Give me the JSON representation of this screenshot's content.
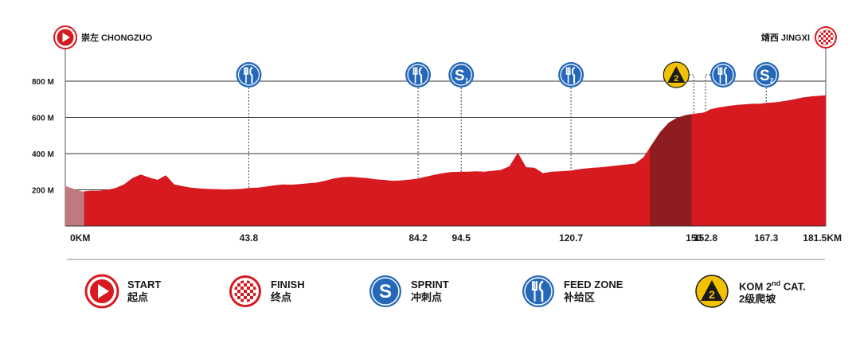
{
  "start": {
    "name": "崇左 CHONGZUO"
  },
  "finish": {
    "name": "靖西 JINGXI"
  },
  "chart_data": {
    "type": "area",
    "ylim": [
      0,
      900
    ],
    "xlim": [
      0,
      181.5
    ],
    "y_ticks": [
      {
        "value": 200,
        "label": "200 M"
      },
      {
        "value": 400,
        "label": "400 M"
      },
      {
        "value": 600,
        "label": "600 M"
      },
      {
        "value": 800,
        "label": "800 M"
      }
    ],
    "x_ticks": [
      {
        "value": 0,
        "label": "0KM"
      },
      {
        "value": 43.8,
        "label": "43.8"
      },
      {
        "value": 84.2,
        "label": "84.2"
      },
      {
        "value": 94.5,
        "label": "94.5"
      },
      {
        "value": 120.7,
        "label": "120.7"
      },
      {
        "value": 150,
        "label": "150"
      },
      {
        "value": 152.8,
        "label": "152.8"
      },
      {
        "value": 167.3,
        "label": "167.3"
      },
      {
        "value": 181.5,
        "label": "181.5KM"
      }
    ],
    "profile": {
      "x": [
        0,
        2,
        4,
        6,
        8,
        10,
        12,
        14,
        16,
        18,
        20,
        22,
        24,
        26,
        28,
        30,
        32,
        34,
        36,
        38,
        40,
        42,
        43.8,
        46,
        48,
        50,
        52,
        54,
        56,
        58,
        60,
        62,
        64,
        66,
        68,
        70,
        72,
        74,
        76,
        78,
        80,
        82,
        84.2,
        86,
        88,
        90,
        92,
        94.5,
        96,
        98,
        100,
        102,
        104,
        106,
        108,
        110,
        112,
        114,
        116,
        118,
        120.7,
        122,
        124,
        126,
        128,
        130,
        132,
        134,
        136,
        138,
        140,
        142,
        144,
        146,
        148,
        150,
        152,
        152.8,
        154,
        156,
        158,
        160,
        162,
        164,
        166,
        167.3,
        170,
        172,
        174,
        176,
        178,
        181.5
      ],
      "y": [
        220,
        205,
        190,
        195,
        195,
        200,
        210,
        230,
        265,
        285,
        268,
        255,
        280,
        230,
        220,
        212,
        208,
        205,
        204,
        202,
        203,
        205,
        210,
        212,
        218,
        225,
        230,
        228,
        232,
        236,
        240,
        250,
        262,
        270,
        272,
        268,
        265,
        258,
        255,
        250,
        252,
        256,
        262,
        272,
        282,
        292,
        298,
        300,
        300,
        302,
        300,
        305,
        310,
        330,
        405,
        325,
        322,
        292,
        300,
        302,
        306,
        312,
        318,
        322,
        325,
        330,
        335,
        340,
        345,
        380,
        450,
        520,
        570,
        598,
        612,
        620,
        625,
        630,
        645,
        655,
        662,
        668,
        672,
        675,
        676,
        680,
        685,
        692,
        700,
        710,
        716,
        722
      ]
    },
    "climb_segment": {
      "x": [
        139.5,
        149.5
      ]
    },
    "markers": [
      {
        "type": "feed",
        "km": 43.8
      },
      {
        "type": "feed",
        "km": 84.2
      },
      {
        "type": "sprint",
        "km": 94.5,
        "number": "1"
      },
      {
        "type": "feed",
        "km": 120.7
      },
      {
        "type": "kom",
        "km": 150,
        "number": "2"
      },
      {
        "type": "feed",
        "km": 152.8
      },
      {
        "type": "sprint",
        "km": 167.3,
        "number": "2"
      }
    ]
  },
  "legend": {
    "start": {
      "line1": "START",
      "line2": "起点"
    },
    "finish": {
      "line1": "FINISH",
      "line2": "终点"
    },
    "sprint": {
      "line1": "SPRINT",
      "line2": "冲刺点"
    },
    "feed": {
      "line1": "FEED ZONE",
      "line2": "补给区"
    },
    "kom": {
      "line1_pre": "KOM 2",
      "line1_sup": "nd",
      "line1_post": " CAT.",
      "line2": "2级爬坡"
    }
  },
  "colors": {
    "profile": "#d71920",
    "profile_dark": "#8f1d1f",
    "start_grey": "#c07a7e",
    "icon_blue": "#2568b8",
    "kom_yellow": "#f2c200",
    "grid": "#333333",
    "divider": "#888888"
  }
}
